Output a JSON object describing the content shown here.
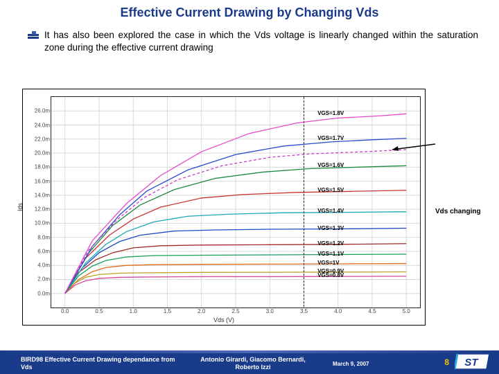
{
  "title": "Effective Current Drawing by Changing Vds",
  "bullet": "It has also been explored the case in which the Vds voltage is linearly changed within the saturation zone during the effective current drawing",
  "chart": {
    "type": "line",
    "xlabel": "Vds (V)",
    "ylabel": "Ids",
    "xlim": [
      -0.2,
      5.2
    ],
    "ylim": [
      -2,
      28
    ],
    "xticks": [
      0.0,
      0.5,
      1.0,
      1.5,
      2.0,
      2.5,
      3.0,
      3.5,
      4.0,
      4.5,
      5.0
    ],
    "yticks": [
      0,
      2,
      4,
      6,
      8,
      10,
      12,
      14,
      16,
      18,
      20,
      22,
      24,
      26
    ],
    "ytick_suffix": "m",
    "ytick_decimals": 1,
    "tick_fontsize": 8,
    "label_fontsize": 9,
    "grid_color": "#d9d9d9",
    "border_color": "#222222",
    "background_color": "#ffffff",
    "curves": [
      {
        "label": "VGS=0.8V",
        "color": "#d64a9a",
        "sat": 2.4,
        "x": [
          0,
          0.15,
          0.3,
          0.5,
          0.8,
          1.2,
          2,
          3,
          4,
          5
        ],
        "y": [
          0,
          1.2,
          1.8,
          2.15,
          2.3,
          2.35,
          2.4,
          2.4,
          2.42,
          2.45
        ]
      },
      {
        "label": "VGS=0.9V",
        "color": "#bba02a",
        "sat": 3.0,
        "x": [
          0,
          0.15,
          0.3,
          0.5,
          0.8,
          1.2,
          2,
          3,
          4,
          5
        ],
        "y": [
          0,
          1.5,
          2.3,
          2.7,
          2.9,
          2.95,
          3.0,
          3.02,
          3.05,
          3.08
        ]
      },
      {
        "label": "VGS=1V",
        "color": "#e06a1a",
        "sat": 4.2,
        "x": [
          0,
          0.2,
          0.4,
          0.6,
          0.9,
          1.3,
          2,
          3,
          4,
          5
        ],
        "y": [
          0,
          2.0,
          3.1,
          3.7,
          4.0,
          4.1,
          4.15,
          4.18,
          4.22,
          4.26
        ]
      },
      {
        "label": "VGS=1.1V",
        "color": "#18a05a",
        "sat": 5.5,
        "x": [
          0,
          0.2,
          0.4,
          0.6,
          0.9,
          1.3,
          2,
          3,
          4,
          5
        ],
        "y": [
          0,
          2.5,
          3.9,
          4.7,
          5.2,
          5.4,
          5.45,
          5.5,
          5.55,
          5.6
        ]
      },
      {
        "label": "VGS=1.2V",
        "color": "#a02a2a",
        "sat": 7.0,
        "x": [
          0,
          0.2,
          0.45,
          0.7,
          1.0,
          1.4,
          2,
          3,
          4,
          5
        ],
        "y": [
          0,
          3.0,
          4.8,
          5.8,
          6.5,
          6.8,
          6.9,
          6.95,
          7.0,
          7.1
        ]
      },
      {
        "label": "VGS=1.3V",
        "color": "#1a4ac0",
        "sat": 9.2,
        "x": [
          0,
          0.25,
          0.5,
          0.8,
          1.1,
          1.6,
          2.2,
          3,
          4,
          5
        ],
        "y": [
          0,
          3.6,
          5.8,
          7.4,
          8.3,
          8.9,
          9.05,
          9.15,
          9.2,
          9.3
        ]
      },
      {
        "label": "VGS=1.4V",
        "color": "#1aa8b4",
        "sat": 11.6,
        "x": [
          0,
          0.3,
          0.6,
          0.9,
          1.3,
          1.8,
          2.4,
          3.2,
          4,
          5
        ],
        "y": [
          0,
          4.3,
          7.0,
          8.8,
          10.2,
          11.0,
          11.3,
          11.5,
          11.55,
          11.65
        ]
      },
      {
        "label": "VGS=1.5V",
        "color": "#c83232",
        "sat": 14.6,
        "x": [
          0,
          0.3,
          0.65,
          1.0,
          1.4,
          2.0,
          2.6,
          3.4,
          4.2,
          5
        ],
        "y": [
          0,
          5.0,
          8.3,
          10.6,
          12.3,
          13.6,
          14.1,
          14.4,
          14.55,
          14.7
        ]
      },
      {
        "label": "VGS=1.6V",
        "color": "#1a8a3c",
        "sat": 18.1,
        "x": [
          0,
          0.35,
          0.7,
          1.1,
          1.6,
          2.2,
          2.9,
          3.6,
          4.3,
          5
        ],
        "y": [
          0,
          5.8,
          9.7,
          12.6,
          14.8,
          16.4,
          17.3,
          17.8,
          18.0,
          18.2
        ]
      },
      {
        "label": "VGS=1.7V",
        "color": "#2a4ad0",
        "sat": 22.0,
        "x": [
          0,
          0.4,
          0.8,
          1.2,
          1.8,
          2.5,
          3.2,
          3.9,
          4.5,
          5
        ],
        "y": [
          0,
          6.7,
          11.2,
          14.6,
          17.6,
          19.8,
          21.0,
          21.6,
          21.9,
          22.1
        ]
      },
      {
        "label": "VGS=1.8V",
        "color": "#e64ac8",
        "sat": 25.5,
        "x": [
          0,
          0.4,
          0.9,
          1.4,
          2.0,
          2.7,
          3.4,
          4.0,
          4.6,
          5
        ],
        "y": [
          0,
          7.5,
          12.8,
          16.8,
          20.2,
          22.8,
          24.3,
          25.0,
          25.3,
          25.6
        ]
      }
    ],
    "vds_line": {
      "color": "#c83cc8",
      "dash": true,
      "sat": 20.4,
      "x": [
        0,
        0.35,
        0.75,
        1.15,
        1.65,
        2.3,
        3.0,
        3.6,
        4.4,
        5
      ],
      "y": [
        0,
        6.2,
        10.4,
        13.6,
        16.2,
        18.2,
        19.4,
        19.9,
        20.2,
        20.5
      ]
    },
    "vertical_marker_x": 3.5
  },
  "vds_changing_label": "Vds changing",
  "footer": {
    "left": "BIRD98 Effective Current Drawing dependance from Vds",
    "middle": "Antonio Girardi, Giacomo Bernardi, Roberto Izzi",
    "date": "March 9, 2007",
    "page": "8",
    "band_color": "#1a3a8a",
    "page_color": "#f5c400"
  },
  "logo": {
    "text": "ST",
    "bg": "#ffffff",
    "fg": "#1a3a8a",
    "accent": "#2aa8e0"
  }
}
